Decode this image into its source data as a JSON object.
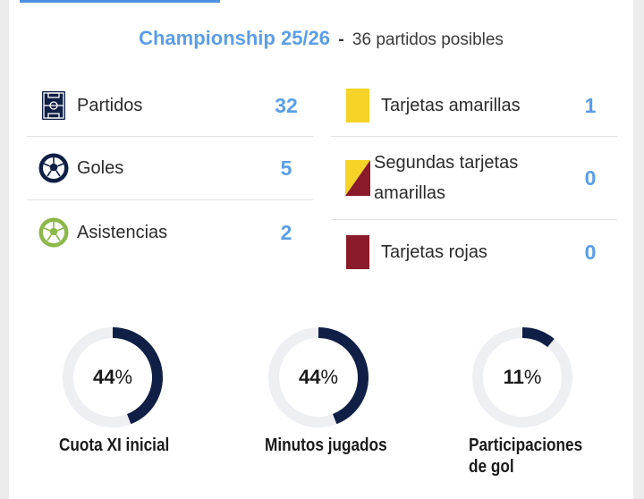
{
  "header": {
    "competition": "Championship 25/26",
    "separator": "-",
    "subtitle": "36 partidos posibles"
  },
  "stats_left": [
    {
      "label": "Partidos",
      "value": "32",
      "icon": "pitch-icon"
    },
    {
      "label": "Goles",
      "value": "5",
      "icon": "ball-icon"
    },
    {
      "label": "Asistencias",
      "value": "2",
      "icon": "assist-ball-icon"
    }
  ],
  "stats_right": [
    {
      "label": "Tarjetas amarillas",
      "value": "1",
      "icon": "yellow-card-icon"
    },
    {
      "label_line1": "Segundas tarjetas",
      "label_line2": "amarillas",
      "value": "0",
      "icon": "second-yellow-card-icon"
    },
    {
      "label": "Tarjetas rojas",
      "value": "0",
      "icon": "red-card-icon"
    }
  ],
  "gauges": [
    {
      "percent": 44,
      "number": "44",
      "symbol": "%",
      "label_line1": "Cuota XI inicial",
      "label_line2": ""
    },
    {
      "percent": 44,
      "number": "44",
      "symbol": "%",
      "label_line1": "Minutos jugados",
      "label_line2": ""
    },
    {
      "percent": 11,
      "number": "11",
      "symbol": "%",
      "label_line1": "Participaciones",
      "label_line2": "de gol"
    }
  ],
  "colors": {
    "accent": "#5b9ee6",
    "navy": "#0f1f45",
    "track": "#eeeff2",
    "yellow": "#f5d327",
    "red": "#8b1a2b",
    "assist_green": "#8db84a"
  }
}
